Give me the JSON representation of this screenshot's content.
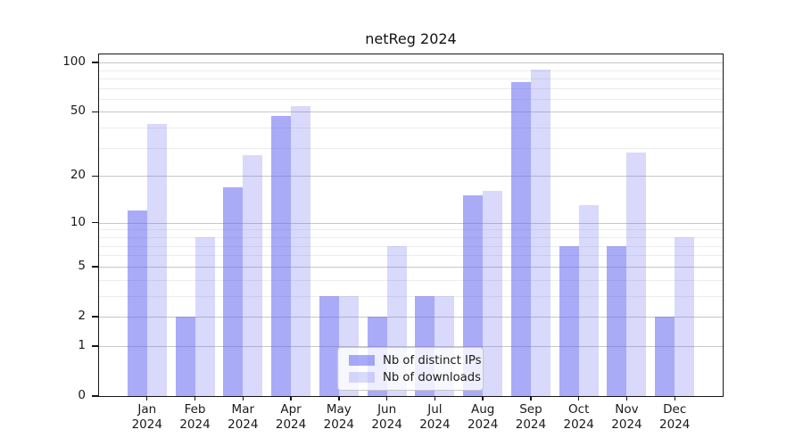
{
  "title": "netReg 2024",
  "chart_data": {
    "type": "bar",
    "title": "netReg 2024",
    "categories": [
      "Jan 2024",
      "Feb 2024",
      "Mar 2024",
      "Apr 2024",
      "May 2024",
      "Jun 2024",
      "Jul 2024",
      "Aug 2024",
      "Sep 2024",
      "Oct 2024",
      "Nov 2024",
      "Dec 2024"
    ],
    "series": [
      {
        "name": "Nb of distinct IPs",
        "color": "#6366f1",
        "alpha": 0.55,
        "values": [
          12,
          2,
          17,
          47,
          3,
          2,
          3,
          15,
          76,
          7,
          7,
          2
        ]
      },
      {
        "name": "Nb of downloads",
        "color": "#6366f1",
        "alpha": 0.25,
        "values": [
          42,
          8,
          27,
          54,
          3,
          7,
          3,
          16,
          91,
          13,
          28,
          8
        ]
      }
    ],
    "xlabel": "",
    "ylabel": "",
    "yscale": "log1p",
    "ylim": [
      0,
      112
    ],
    "yticks": [
      0,
      1,
      2,
      5,
      10,
      20,
      50,
      100
    ],
    "yticks_minor": [
      3,
      4,
      6,
      7,
      8,
      9,
      30,
      40,
      60,
      70,
      80,
      90
    ],
    "grid": true,
    "legend_position": "lower center",
    "colors": {
      "grid_major": "#c7c7c7",
      "grid_minor": "#ececec",
      "spine": "#151515",
      "text": "#1a1a1a"
    }
  }
}
